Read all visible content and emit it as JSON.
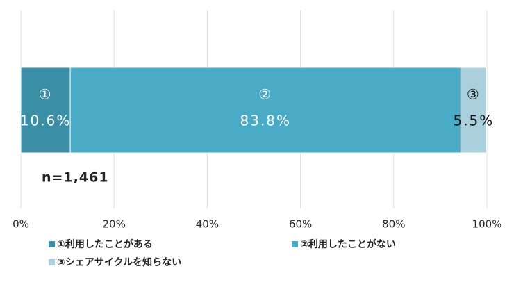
{
  "chart_data": {
    "type": "stacked-bar-horizontal",
    "annotation": "n=1,461",
    "series": [
      {
        "name": "①利用したことがある",
        "marker": "①",
        "color": "#3a8ea6",
        "label_color": "#ffffff",
        "values": [
          10.6
        ],
        "value_labels": [
          "10.6%"
        ]
      },
      {
        "name": "②利用したことがない",
        "marker": "②",
        "color": "#4aabc6",
        "label_color": "#ffffff",
        "values": [
          83.8
        ],
        "value_labels": [
          "83.8%"
        ]
      },
      {
        "name": "③シェアサイクルを知らない",
        "marker": "③",
        "color": "#a9d0dc",
        "label_color": "#111111",
        "values": [
          5.5
        ],
        "value_labels": [
          "5.5%"
        ]
      }
    ],
    "xlim": [
      0,
      100
    ],
    "xticks": [
      {
        "value": 0,
        "label": "0%"
      },
      {
        "value": 20,
        "label": "20%"
      },
      {
        "value": 40,
        "label": "40%"
      },
      {
        "value": 60,
        "label": "60%"
      },
      {
        "value": 80,
        "label": "80%"
      },
      {
        "value": 100,
        "label": "100%"
      }
    ],
    "grid": true
  }
}
